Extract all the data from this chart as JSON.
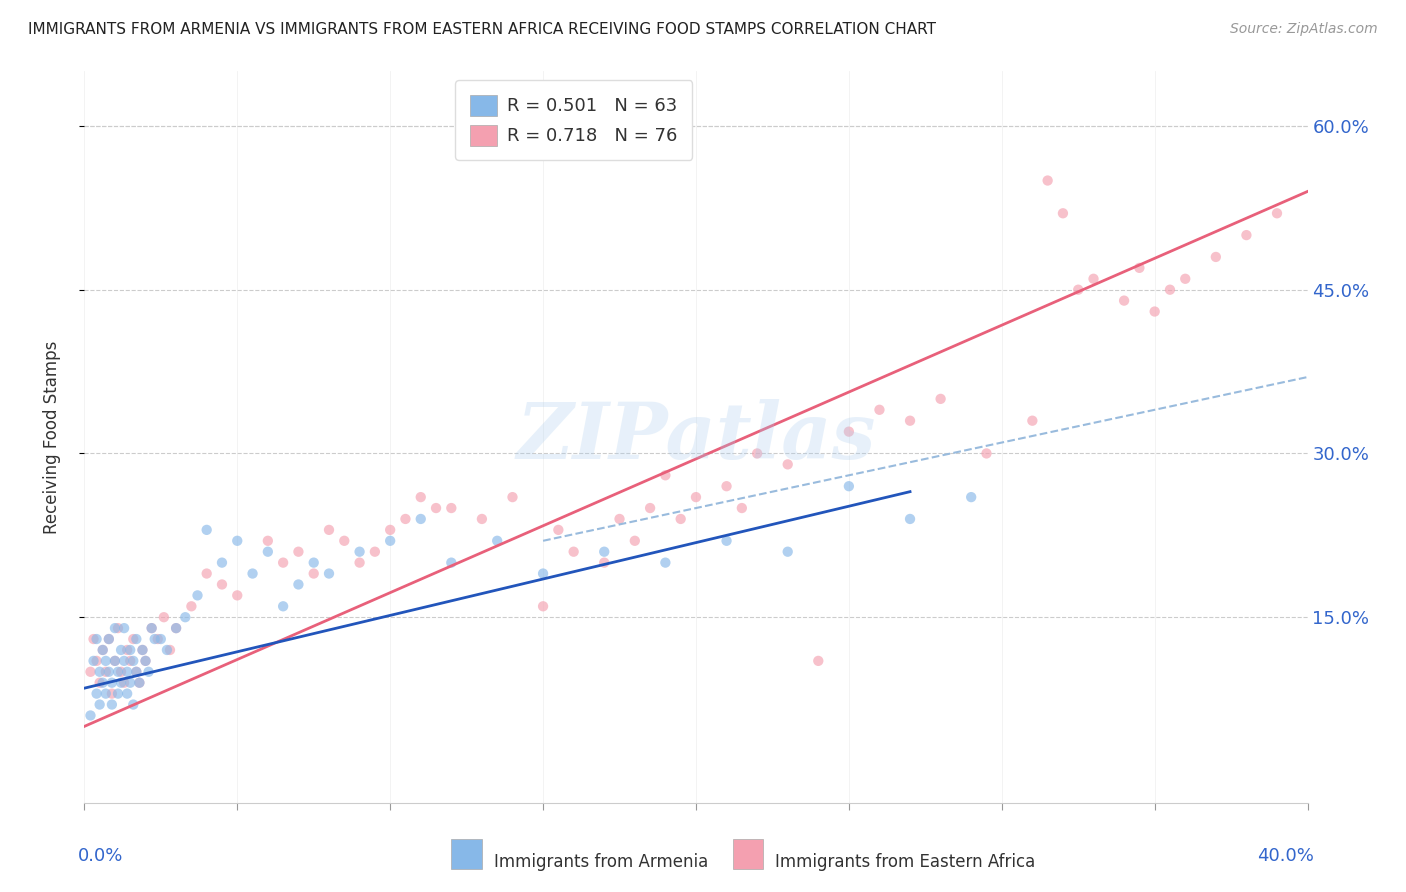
{
  "title": "IMMIGRANTS FROM ARMENIA VS IMMIGRANTS FROM EASTERN AFRICA RECEIVING FOOD STAMPS CORRELATION CHART",
  "source": "Source: ZipAtlas.com",
  "ylabel": "Receiving Food Stamps",
  "ytick_labels": [
    "60.0%",
    "45.0%",
    "30.0%",
    "15.0%"
  ],
  "ytick_values": [
    0.6,
    0.45,
    0.3,
    0.15
  ],
  "xlim": [
    0.0,
    0.4
  ],
  "ylim": [
    -0.02,
    0.65
  ],
  "watermark": "ZIPatlas",
  "armenia_color": "#87b8e8",
  "eastern_africa_color": "#f4a0b0",
  "armenia_line_color": "#2255bb",
  "eastern_africa_line_color": "#e8607a",
  "dashed_line_color": "#99bbdd",
  "grid_color": "#cccccc",
  "background_color": "#ffffff",
  "tick_label_color": "#3366cc",
  "title_fontsize": 11,
  "scatter_size": 55,
  "scatter_alpha": 0.65,
  "legend_armenia_label": "R = 0.501   N = 63",
  "legend_ea_label": "R = 0.718   N = 76",
  "bottom_label_armenia": "Immigrants from Armenia",
  "bottom_label_ea": "Immigrants from Eastern Africa",
  "armenia_line_x0": 0.0,
  "armenia_line_x1": 0.27,
  "armenia_line_y0": 0.085,
  "armenia_line_y1": 0.265,
  "eastern_africa_line_x0": 0.0,
  "eastern_africa_line_x1": 0.4,
  "eastern_africa_line_y0": 0.05,
  "eastern_africa_line_y1": 0.54,
  "dashed_line_x0": 0.15,
  "dashed_line_x1": 0.4,
  "dashed_line_y0": 0.22,
  "dashed_line_y1": 0.37,
  "armenia_scatter_x": [
    0.002,
    0.003,
    0.004,
    0.004,
    0.005,
    0.005,
    0.006,
    0.006,
    0.007,
    0.007,
    0.008,
    0.008,
    0.009,
    0.009,
    0.01,
    0.01,
    0.011,
    0.011,
    0.012,
    0.012,
    0.013,
    0.013,
    0.014,
    0.014,
    0.015,
    0.015,
    0.016,
    0.016,
    0.017,
    0.017,
    0.018,
    0.019,
    0.02,
    0.021,
    0.022,
    0.023,
    0.025,
    0.027,
    0.03,
    0.033,
    0.037,
    0.04,
    0.045,
    0.05,
    0.055,
    0.06,
    0.065,
    0.07,
    0.075,
    0.08,
    0.09,
    0.1,
    0.11,
    0.12,
    0.135,
    0.15,
    0.17,
    0.19,
    0.21,
    0.23,
    0.25,
    0.27,
    0.29
  ],
  "armenia_scatter_y": [
    0.06,
    0.11,
    0.08,
    0.13,
    0.1,
    0.07,
    0.09,
    0.12,
    0.08,
    0.11,
    0.1,
    0.13,
    0.07,
    0.09,
    0.11,
    0.14,
    0.1,
    0.08,
    0.12,
    0.09,
    0.11,
    0.14,
    0.1,
    0.08,
    0.12,
    0.09,
    0.11,
    0.07,
    0.13,
    0.1,
    0.09,
    0.12,
    0.11,
    0.1,
    0.14,
    0.13,
    0.13,
    0.12,
    0.14,
    0.15,
    0.17,
    0.23,
    0.2,
    0.22,
    0.19,
    0.21,
    0.16,
    0.18,
    0.2,
    0.19,
    0.21,
    0.22,
    0.24,
    0.2,
    0.22,
    0.19,
    0.21,
    0.2,
    0.22,
    0.21,
    0.27,
    0.24,
    0.26
  ],
  "eastern_africa_scatter_x": [
    0.002,
    0.003,
    0.004,
    0.005,
    0.006,
    0.007,
    0.008,
    0.009,
    0.01,
    0.011,
    0.012,
    0.013,
    0.014,
    0.015,
    0.016,
    0.017,
    0.018,
    0.019,
    0.02,
    0.022,
    0.024,
    0.026,
    0.028,
    0.03,
    0.035,
    0.04,
    0.045,
    0.05,
    0.06,
    0.065,
    0.07,
    0.075,
    0.08,
    0.085,
    0.09,
    0.095,
    0.1,
    0.105,
    0.11,
    0.115,
    0.12,
    0.13,
    0.14,
    0.15,
    0.155,
    0.16,
    0.17,
    0.175,
    0.18,
    0.185,
    0.19,
    0.195,
    0.2,
    0.21,
    0.215,
    0.22,
    0.23,
    0.24,
    0.25,
    0.26,
    0.27,
    0.28,
    0.295,
    0.31,
    0.315,
    0.32,
    0.325,
    0.33,
    0.34,
    0.345,
    0.35,
    0.355,
    0.36,
    0.37,
    0.38,
    0.39
  ],
  "eastern_africa_scatter_y": [
    0.1,
    0.13,
    0.11,
    0.09,
    0.12,
    0.1,
    0.13,
    0.08,
    0.11,
    0.14,
    0.1,
    0.09,
    0.12,
    0.11,
    0.13,
    0.1,
    0.09,
    0.12,
    0.11,
    0.14,
    0.13,
    0.15,
    0.12,
    0.14,
    0.16,
    0.19,
    0.18,
    0.17,
    0.22,
    0.2,
    0.21,
    0.19,
    0.23,
    0.22,
    0.2,
    0.21,
    0.23,
    0.24,
    0.26,
    0.25,
    0.25,
    0.24,
    0.26,
    0.16,
    0.23,
    0.21,
    0.2,
    0.24,
    0.22,
    0.25,
    0.28,
    0.24,
    0.26,
    0.27,
    0.25,
    0.3,
    0.29,
    0.11,
    0.32,
    0.34,
    0.33,
    0.35,
    0.3,
    0.33,
    0.55,
    0.52,
    0.45,
    0.46,
    0.44,
    0.47,
    0.43,
    0.45,
    0.46,
    0.48,
    0.5,
    0.52
  ]
}
